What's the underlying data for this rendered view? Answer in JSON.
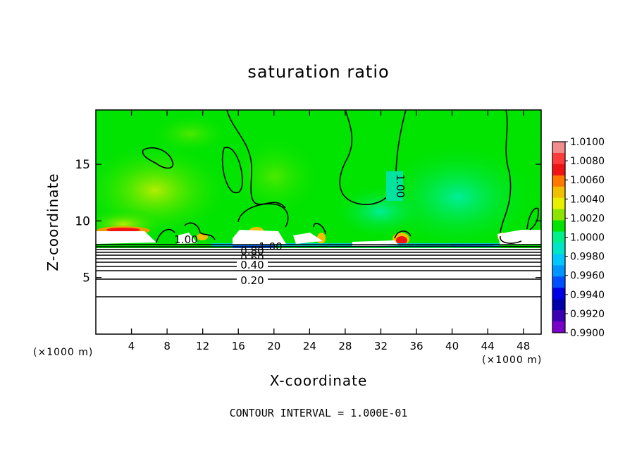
{
  "chart_data": {
    "type": "heatmap",
    "title": "saturation ratio",
    "xlabel": "X-coordinate",
    "ylabel": "Z-coordinate",
    "x_unit_label": "(×1000 m)",
    "footnote": "CONTOUR INTERVAL = 1.000E-01",
    "xlim": [
      0,
      50
    ],
    "ylim": [
      0,
      19.8
    ],
    "xticks": [
      4,
      8,
      12,
      16,
      20,
      24,
      28,
      32,
      36,
      40,
      44,
      48
    ],
    "yticks": [
      5,
      10,
      15
    ],
    "colorbar": {
      "ticks": [
        "1.0100",
        "1.0080",
        "1.0060",
        "1.0040",
        "1.0020",
        "1.0000",
        "0.9980",
        "0.9960",
        "0.9940",
        "0.9920",
        "0.9900"
      ],
      "colors": [
        "#f08c8c",
        "#ff3c3c",
        "#f01414",
        "#ff7800",
        "#f0c000",
        "#e8f000",
        "#8ce400",
        "#00e400",
        "#00f08c",
        "#00e4c8",
        "#00c8ff",
        "#0096ff",
        "#0050ff",
        "#0000e4",
        "#0000aa",
        "#3c00b4",
        "#7800c8"
      ]
    },
    "contour_labels": [
      "1.00",
      "1.00",
      "1.00",
      "0.80",
      "0.60",
      "0.40",
      "0.20"
    ],
    "contour_levels": [
      0.2,
      0.4,
      0.6,
      0.8,
      1.0
    ]
  }
}
